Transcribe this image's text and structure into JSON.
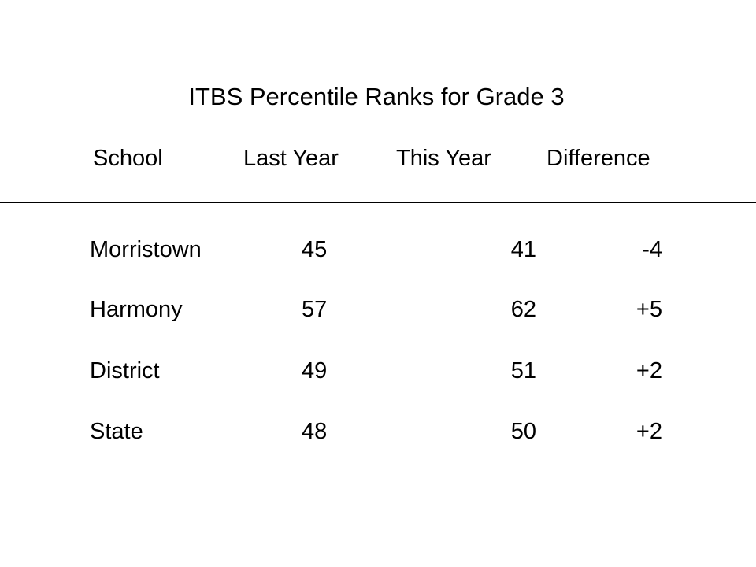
{
  "title": "ITBS Percentile Ranks for Grade 3",
  "headers": {
    "school": "School",
    "last_year": "Last Year",
    "this_year": "This Year",
    "difference": "Difference"
  },
  "rows": [
    {
      "school": "Morristown",
      "last_year": "45",
      "this_year": "41",
      "difference": "-4"
    },
    {
      "school": "Harmony",
      "last_year": "57",
      "this_year": "62",
      "difference": "+5"
    },
    {
      "school": "District",
      "last_year": "49",
      "this_year": "51",
      "difference": "+2"
    },
    {
      "school": "State",
      "last_year": "48",
      "this_year": "50",
      "difference": "+2"
    }
  ]
}
